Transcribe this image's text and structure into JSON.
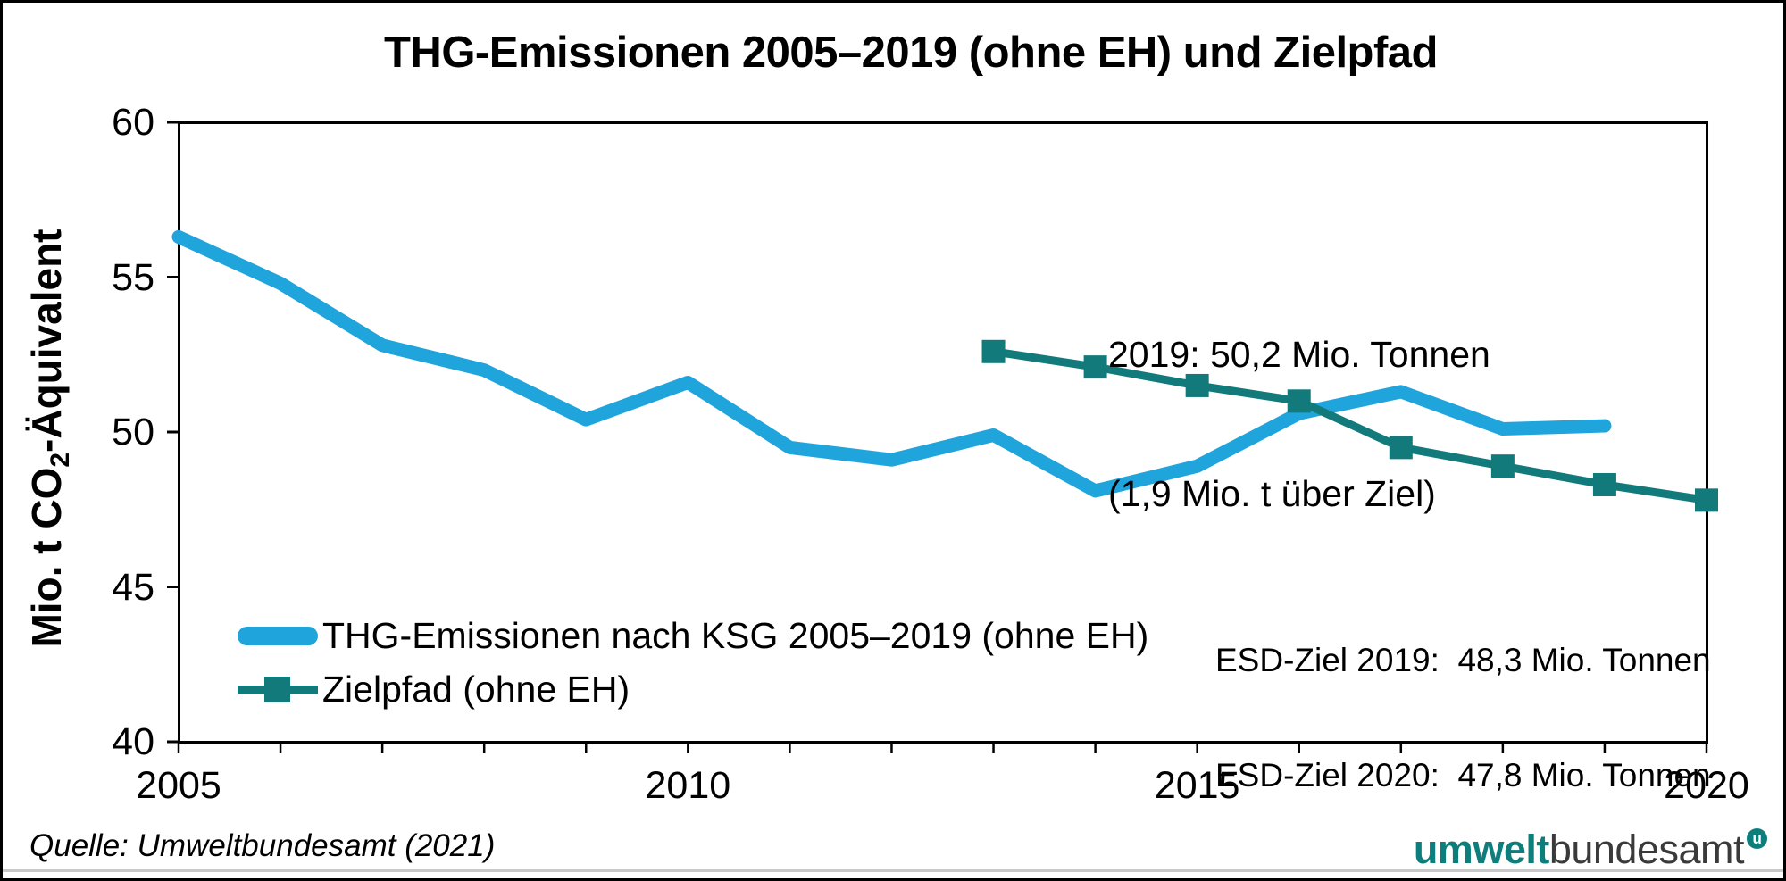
{
  "title": "THG-Emissionen 2005–2019 (ohne EH) und Zielpfad",
  "y_axis": {
    "title_prefix": "Mio. t CO",
    "title_sub": "2",
    "title_suffix": "-Äquivalent",
    "tick_values": [
      60,
      55,
      50,
      45,
      40
    ]
  },
  "x_axis": {
    "labels": [
      {
        "text": "2005",
        "year": 2005
      },
      {
        "text": "2010",
        "year": 2010
      },
      {
        "text": "2015",
        "year": 2015
      },
      {
        "text": "2020",
        "year": 2020
      }
    ]
  },
  "chart_data": {
    "type": "line",
    "title": "THG-Emissionen 2005–2019 (ohne EH) und Zielpfad",
    "ylabel": "Mio. t CO2-Äquivalent",
    "xlabel": "",
    "xlim": [
      2005,
      2020
    ],
    "ylim": [
      40,
      60
    ],
    "grid": false,
    "legend_position": "inside bottom-left",
    "series": [
      {
        "name": "THG-Emissionen nach KSG 2005–2019 (ohne EH)",
        "color": "#1fa4db",
        "marker": "none",
        "line_width": 15,
        "x": [
          2005,
          2006,
          2007,
          2008,
          2009,
          2010,
          2011,
          2012,
          2013,
          2014,
          2015,
          2016,
          2017,
          2018,
          2019
        ],
        "values": [
          56.3,
          54.8,
          52.8,
          52.0,
          50.4,
          51.6,
          49.5,
          49.1,
          49.9,
          48.1,
          48.9,
          50.6,
          51.3,
          50.1,
          50.2
        ]
      },
      {
        "name": "Zielpfad (ohne EH)",
        "color": "#137a7c",
        "marker": "square",
        "line_width": 9,
        "marker_size": 26,
        "x": [
          2013,
          2014,
          2015,
          2016,
          2017,
          2018,
          2019,
          2020
        ],
        "values": [
          52.6,
          52.1,
          51.5,
          51.0,
          49.5,
          48.9,
          48.3,
          47.8
        ]
      }
    ]
  },
  "annotations": {
    "peak": {
      "line1": "2019: 50,2 Mio. Tonnen",
      "line2": "(1,9 Mio. t über Ziel)"
    },
    "esd": {
      "line1": "ESD-Ziel 2019:  48,3 Mio. Tonnen",
      "line2": "ESD-Ziel 2020:  47,8 Mio. Tonnen"
    }
  },
  "source": "Quelle: Umweltbundesamt (2021)",
  "logo": {
    "part_bold": "umwelt",
    "part_regular": "bundesamt",
    "badge": "u",
    "teal": "#0d7e7b",
    "dark": "#3a3a3a"
  }
}
